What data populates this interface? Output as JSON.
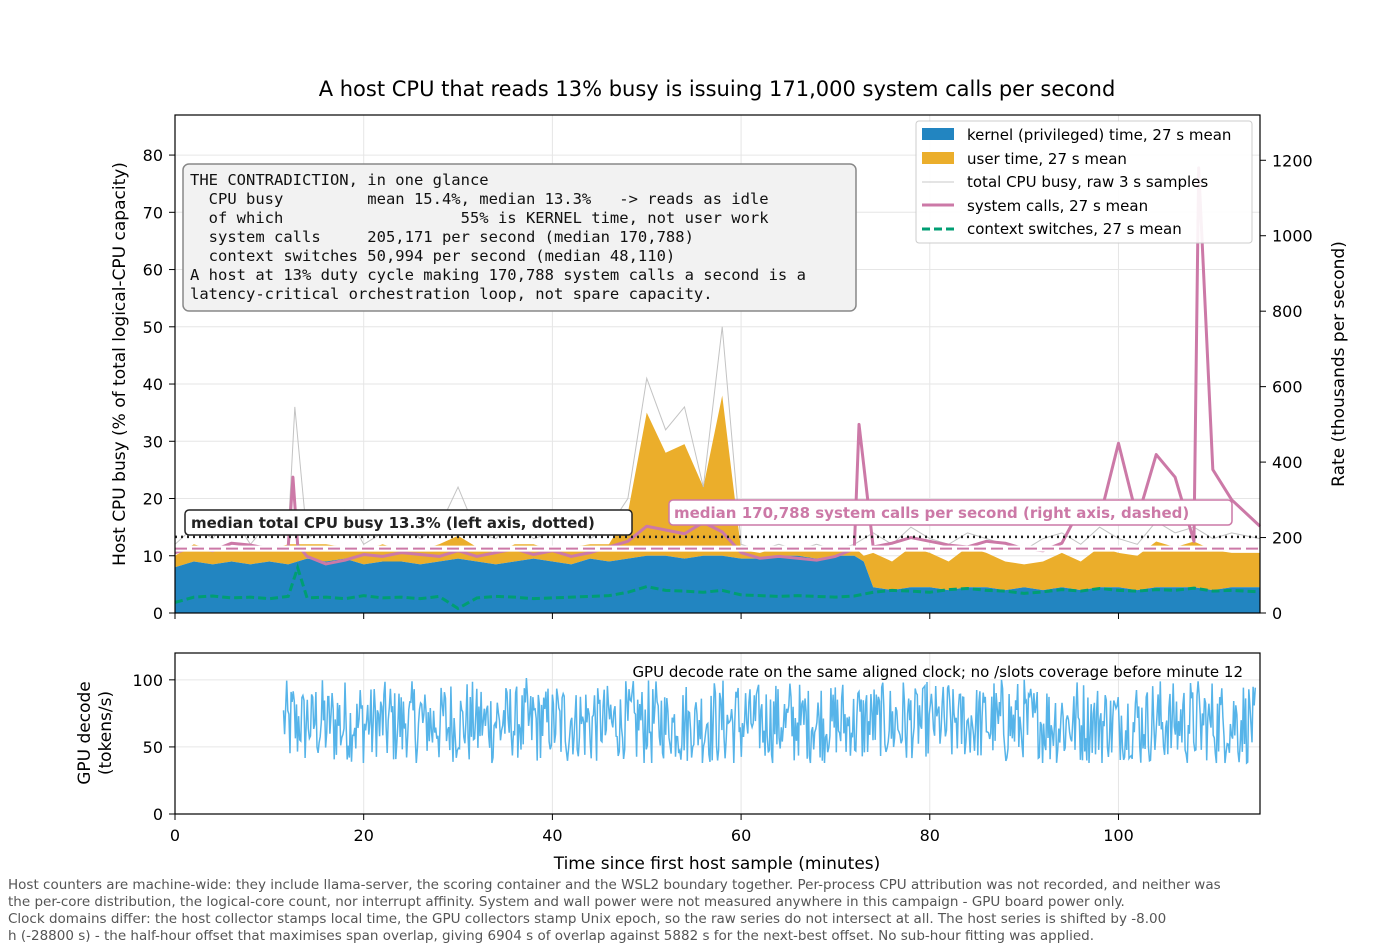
{
  "figure": {
    "title": "A host CPU that reads 13% busy is issuing 171,000 system calls per second",
    "footnote": [
      "Host counters are machine-wide: they include llama-server, the scoring container and the WSL2 boundary together. Per-process CPU attribution was not recorded, and neither was",
      "the per-core distribution, the logical-core count, nor interrupt affinity. System and wall power were not measured anywhere in this campaign - GPU board power only.",
      "Clock domains differ: the host collector stamps local time, the GPU collectors stamp Unix epoch, so the raw series do not intersect at all. The host series is shifted by -8.00",
      "h (-28800 s) - the half-hour offset that maximises span overlap, giving 6904 s of overlap against 5882 s for the next-best offset. No sub-hour fitting was applied."
    ]
  },
  "chart_data": [
    {
      "type": "area",
      "panel": "top",
      "xlabel": "",
      "ylabel": "Host CPU busy (% of total logical-CPU capacity)",
      "y2label": "Rate (thousands per second)",
      "xlim": [
        0,
        115
      ],
      "ylim": [
        0,
        87
      ],
      "y2lim": [
        0,
        1320
      ],
      "xticks": [
        0,
        20,
        40,
        60,
        80,
        100
      ],
      "yticks": [
        0,
        10,
        20,
        30,
        40,
        50,
        60,
        70,
        80
      ],
      "y2ticks": [
        0,
        200,
        400,
        600,
        800,
        1000,
        1200
      ],
      "grid": true,
      "legend_position": "top-right",
      "legend": [
        {
          "label": "kernel (privileged) time, 27 s mean",
          "color": "#2285c1",
          "kind": "patch"
        },
        {
          "label": "user time, 27 s mean",
          "color": "#ebae2b",
          "kind": "patch"
        },
        {
          "label": "total CPU busy, raw 3 s samples",
          "color": "#c8c8c8",
          "kind": "line"
        },
        {
          "label": "system calls, 27 s mean",
          "color": "#cc79a7",
          "kind": "line"
        },
        {
          "label": "context switches, 27 s mean",
          "color": "#009e73",
          "kind": "dashed"
        }
      ],
      "series": [
        {
          "name": "kernel (privileged) time, 27 s mean",
          "axis": "left",
          "x": [
            0,
            2,
            4,
            6,
            8,
            10,
            12,
            14,
            16,
            18,
            20,
            22,
            24,
            26,
            28,
            30,
            32,
            34,
            36,
            38,
            40,
            42,
            44,
            46,
            48,
            50,
            52,
            54,
            56,
            58,
            60,
            62,
            64,
            66,
            68,
            70,
            72,
            73,
            74,
            76,
            78,
            80,
            82,
            84,
            86,
            88,
            90,
            92,
            94,
            96,
            98,
            100,
            102,
            104,
            106,
            108,
            110,
            112,
            115
          ],
          "values": [
            8,
            9,
            8.5,
            9,
            8.5,
            9,
            8.5,
            9.5,
            9,
            9.5,
            8.5,
            9,
            9,
            8.5,
            9,
            9.5,
            9,
            8.5,
            9,
            9.5,
            9,
            8.5,
            9.5,
            9,
            9.5,
            10,
            10,
            9.5,
            10,
            10,
            9.5,
            9.5,
            10,
            10,
            9.5,
            10,
            10,
            9,
            4.5,
            4,
            4.5,
            4.5,
            4,
            4.5,
            4.5,
            4,
            4.5,
            4,
            4.5,
            4,
            4.5,
            4.5,
            4,
            4.5,
            4.5,
            4.5,
            4,
            4.5,
            4.5
          ]
        },
        {
          "name": "user time, 27 s mean",
          "axis": "left",
          "x": [
            0,
            2,
            4,
            6,
            8,
            10,
            12,
            14,
            16,
            18,
            20,
            22,
            24,
            26,
            28,
            30,
            32,
            34,
            36,
            38,
            40,
            42,
            44,
            46,
            48,
            50,
            52,
            54,
            56,
            58,
            60,
            62,
            64,
            66,
            68,
            70,
            72,
            73,
            74,
            76,
            78,
            80,
            82,
            84,
            86,
            88,
            90,
            92,
            94,
            96,
            98,
            100,
            102,
            104,
            106,
            108,
            110,
            112,
            115
          ],
          "values": [
            2,
            3,
            2.5,
            2,
            3,
            2,
            3.5,
            2.5,
            3,
            2,
            2.5,
            3,
            2,
            2.5,
            3,
            4,
            2.5,
            2,
            3,
            2.5,
            2,
            3,
            2.5,
            3,
            8,
            25,
            18,
            20,
            12,
            28,
            1.5,
            1,
            1.5,
            1,
            1.5,
            1,
            1.5,
            1,
            6,
            5,
            7,
            6,
            5,
            7,
            6,
            5,
            4,
            5,
            6,
            5,
            7,
            6,
            6,
            8,
            7,
            8,
            7,
            6,
            6
          ]
        },
        {
          "name": "total CPU busy, raw 3 s samples",
          "axis": "left",
          "x": [
            0,
            2,
            4,
            6,
            8,
            10,
            12,
            12.7,
            14,
            16,
            18,
            20,
            22,
            24,
            26,
            28,
            30,
            32,
            34,
            36,
            38,
            40,
            42,
            44,
            46,
            48,
            50,
            52,
            54,
            56,
            58,
            60,
            62,
            64,
            66,
            68,
            70,
            72,
            74,
            76,
            78,
            80,
            82,
            84,
            86,
            88,
            90,
            92,
            94,
            96,
            98,
            100,
            102,
            104,
            106,
            108,
            110,
            112,
            115
          ],
          "values": [
            12,
            15,
            13,
            17,
            12,
            16,
            14,
            36,
            13,
            15,
            18,
            12,
            14,
            16,
            13,
            15,
            22,
            14,
            13,
            16,
            13,
            14,
            16,
            13,
            15,
            20,
            41,
            32,
            36,
            22,
            50,
            12,
            11,
            12,
            11,
            12,
            11,
            12,
            14,
            12,
            15,
            13,
            12,
            14,
            13,
            12,
            11,
            13,
            14,
            12,
            15,
            13,
            12,
            16,
            14,
            15,
            13,
            14,
            13
          ]
        },
        {
          "name": "system calls, 27 s mean",
          "axis": "right",
          "x": [
            0,
            2,
            4,
            6,
            8,
            10,
            12,
            12.5,
            13,
            14,
            16,
            18,
            20,
            22,
            24,
            26,
            28,
            30,
            32,
            34,
            36,
            38,
            40,
            42,
            44,
            46,
            48,
            50,
            52,
            54,
            56,
            58,
            60,
            62,
            64,
            66,
            68,
            70,
            72,
            72.5,
            74,
            76,
            78,
            80,
            82,
            84,
            86,
            88,
            90,
            92,
            94,
            96,
            98,
            100,
            102,
            104,
            106,
            108,
            108.5,
            110,
            112,
            115
          ],
          "values": [
            160,
            175,
            165,
            185,
            180,
            170,
            175,
            360,
            180,
            150,
            130,
            140,
            155,
            150,
            160,
            155,
            150,
            165,
            150,
            160,
            170,
            155,
            165,
            150,
            160,
            175,
            190,
            230,
            220,
            210,
            240,
            215,
            160,
            145,
            150,
            145,
            140,
            150,
            170,
            500,
            175,
            185,
            200,
            190,
            180,
            175,
            190,
            185,
            170,
            165,
            185,
            280,
            250,
            450,
            250,
            420,
            360,
            190,
            1180,
            380,
            300,
            230
          ]
        },
        {
          "name": "context switches, 27 s mean",
          "axis": "right",
          "x": [
            0,
            2,
            4,
            6,
            8,
            10,
            12,
            13,
            14,
            16,
            18,
            20,
            22,
            24,
            26,
            28,
            30,
            32,
            34,
            36,
            38,
            40,
            42,
            44,
            46,
            48,
            50,
            52,
            54,
            56,
            58,
            60,
            62,
            64,
            66,
            68,
            70,
            72,
            74,
            76,
            78,
            80,
            82,
            84,
            86,
            88,
            90,
            92,
            94,
            96,
            98,
            100,
            102,
            104,
            106,
            108,
            110,
            112,
            115
          ],
          "values": [
            28,
            42,
            45,
            40,
            42,
            38,
            44,
            120,
            40,
            42,
            38,
            46,
            40,
            42,
            38,
            44,
            12,
            40,
            44,
            42,
            38,
            40,
            42,
            44,
            46,
            55,
            70,
            60,
            58,
            55,
            60,
            48,
            46,
            44,
            46,
            44,
            42,
            45,
            55,
            60,
            58,
            55,
            62,
            65,
            60,
            58,
            52,
            56,
            62,
            58,
            65,
            60,
            58,
            62,
            60,
            66,
            58,
            60,
            56
          ]
        }
      ],
      "reference_lines": [
        {
          "name": "median total CPU busy",
          "axis": "left",
          "value": 13.3,
          "style": "dotted",
          "label": "median total CPU busy 13.3%  (left axis, dotted)"
        },
        {
          "name": "median system calls",
          "axis": "right",
          "value": 170.788,
          "style": "dashed",
          "label": "median 170,788 system calls per second  (right axis, dashed)"
        }
      ],
      "annotation_box": {
        "lines": [
          "THE CONTRADICTION, in one glance",
          "  CPU busy         mean 15.4%, median 13.3%   -> reads as idle",
          "  of which                   55% is KERNEL time, not user work",
          "  system calls     205,171 per second (median 170,788)",
          "  context switches 50,994 per second (median 48,110)",
          "A host at 13% duty cycle making 170,788 system calls a second is a",
          "latency-critical orchestration loop, not spare capacity."
        ]
      }
    },
    {
      "type": "line",
      "panel": "bottom",
      "xlabel": "Time since first host sample (minutes)",
      "ylabel": "GPU decode\n(tokens/s)",
      "xlim": [
        0,
        115
      ],
      "ylim": [
        0,
        120
      ],
      "xticks": [
        0,
        20,
        40,
        60,
        80,
        100
      ],
      "yticks": [
        0,
        50,
        100
      ],
      "grid": true,
      "annotation": "GPU decode rate on the same aligned clock; no /slots coverage before minute 12",
      "series": [
        {
          "name": "GPU decode",
          "color": "#56b4e9",
          "x_start": 11.5,
          "x_end": 114.5,
          "typical_low": 40,
          "typical_high": 103,
          "mean": 68
        }
      ]
    }
  ]
}
